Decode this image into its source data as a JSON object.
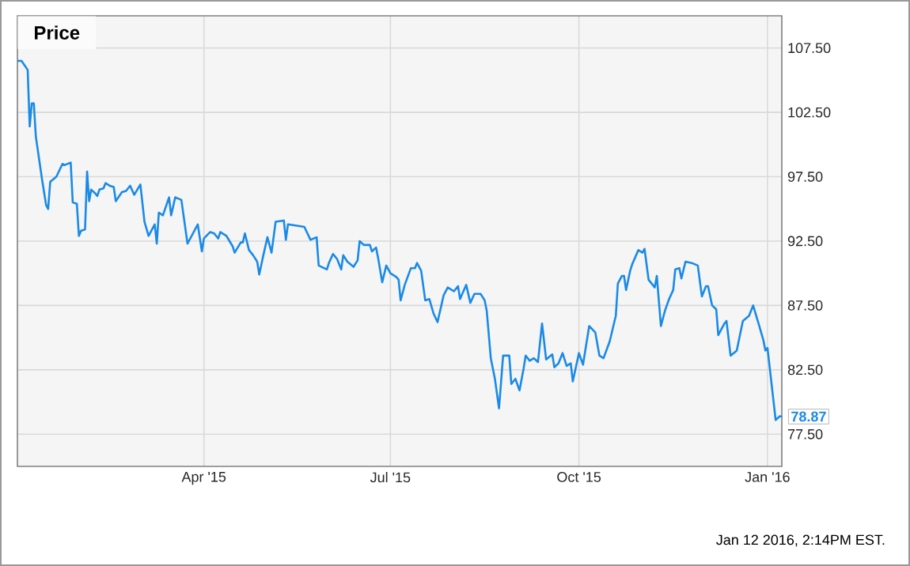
{
  "chart_data": {
    "type": "line",
    "title": "Price",
    "color": "#1a8ae6",
    "grid": true,
    "xlim": [
      "2014-12-31",
      "2016-01-08"
    ],
    "xticks": [
      {
        "value": "2015-04-01",
        "label": "Apr '15"
      },
      {
        "value": "2015-07-01",
        "label": "Jul '15"
      },
      {
        "value": "2015-10-01",
        "label": "Oct '15"
      },
      {
        "value": "2016-01-01",
        "label": "Jan '16"
      }
    ],
    "ylim": [
      75,
      110
    ],
    "yticks": [
      {
        "value": 77.5,
        "label": "77.50"
      },
      {
        "value": 82.5,
        "label": "82.50"
      },
      {
        "value": 87.5,
        "label": "87.50"
      },
      {
        "value": 92.5,
        "label": "92.50"
      },
      {
        "value": 97.5,
        "label": "97.50"
      },
      {
        "value": 102.5,
        "label": "102.50"
      },
      {
        "value": 107.5,
        "label": "107.50"
      }
    ],
    "x": [
      "2014-12-31",
      "2015-01-02",
      "2015-01-05",
      "2015-01-06",
      "2015-01-07",
      "2015-01-08",
      "2015-01-09",
      "2015-01-12",
      "2015-01-14",
      "2015-01-15",
      "2015-01-16",
      "2015-01-19",
      "2015-01-22",
      "2015-01-23",
      "2015-01-26",
      "2015-01-27",
      "2015-01-29",
      "2015-01-30",
      "2015-01-31",
      "2015-02-02",
      "2015-02-03",
      "2015-02-04",
      "2015-02-05",
      "2015-02-07",
      "2015-02-08",
      "2015-02-09",
      "2015-02-11",
      "2015-02-12",
      "2015-02-14",
      "2015-02-16",
      "2015-02-17",
      "2015-02-20",
      "2015-02-22",
      "2015-02-24",
      "2015-02-26",
      "2015-03-01",
      "2015-03-03",
      "2015-03-05",
      "2015-03-08",
      "2015-03-09",
      "2015-03-10",
      "2015-03-12",
      "2015-03-15",
      "2015-03-16",
      "2015-03-18",
      "2015-03-21",
      "2015-03-24",
      "2015-03-29",
      "2015-03-31",
      "2015-04-01",
      "2015-04-04",
      "2015-04-06",
      "2015-04-08",
      "2015-04-09",
      "2015-04-12",
      "2015-04-15",
      "2015-04-16",
      "2015-04-19",
      "2015-04-20",
      "2015-04-21",
      "2015-04-23",
      "2015-04-25",
      "2015-04-27",
      "2015-04-28",
      "2015-04-30",
      "2015-05-02",
      "2015-05-04",
      "2015-05-06",
      "2015-05-10",
      "2015-05-11",
      "2015-05-12",
      "2015-05-20",
      "2015-05-23",
      "2015-05-26",
      "2015-05-27",
      "2015-05-31",
      "2015-06-01",
      "2015-06-03",
      "2015-06-05",
      "2015-06-07",
      "2015-06-08",
      "2015-06-10",
      "2015-06-13",
      "2015-06-15",
      "2015-06-16",
      "2015-06-18",
      "2015-06-21",
      "2015-06-22",
      "2015-06-24",
      "2015-06-25",
      "2015-06-27",
      "2015-06-29",
      "2015-07-01",
      "2015-07-04",
      "2015-07-05",
      "2015-07-06",
      "2015-07-08",
      "2015-07-11",
      "2015-07-13",
      "2015-07-14",
      "2015-07-16",
      "2015-07-18",
      "2015-07-20",
      "2015-07-22",
      "2015-07-24",
      "2015-07-27",
      "2015-07-29",
      "2015-08-01",
      "2015-08-03",
      "2015-08-04",
      "2015-08-07",
      "2015-08-09",
      "2015-08-11",
      "2015-08-14",
      "2015-08-16",
      "2015-08-17",
      "2015-08-19",
      "2015-08-21",
      "2015-08-23",
      "2015-08-25",
      "2015-08-28",
      "2015-08-29",
      "2015-08-31",
      "2015-09-02",
      "2015-09-04",
      "2015-09-05",
      "2015-09-07",
      "2015-09-09",
      "2015-09-11",
      "2015-09-13",
      "2015-09-15",
      "2015-09-18",
      "2015-09-19",
      "2015-09-21",
      "2015-09-23",
      "2015-09-25",
      "2015-09-27",
      "2015-09-28",
      "2015-10-01",
      "2015-10-03",
      "2015-10-06",
      "2015-10-09",
      "2015-10-11",
      "2015-10-13",
      "2015-10-16",
      "2015-10-19",
      "2015-10-20",
      "2015-10-22",
      "2015-10-23",
      "2015-10-24",
      "2015-10-26",
      "2015-10-27",
      "2015-10-30",
      "2015-11-01",
      "2015-11-02",
      "2015-11-04",
      "2015-11-06",
      "2015-11-07",
      "2015-11-08",
      "2015-11-10",
      "2015-11-12",
      "2015-11-14",
      "2015-11-16",
      "2015-11-17",
      "2015-11-19",
      "2015-11-20",
      "2015-11-22",
      "2015-11-25",
      "2015-11-28",
      "2015-11-30",
      "2015-12-02",
      "2015-12-03",
      "2015-12-05",
      "2015-12-07",
      "2015-12-08",
      "2015-12-11",
      "2015-12-12",
      "2015-12-14",
      "2015-12-17",
      "2015-12-20",
      "2015-12-23",
      "2015-12-25",
      "2015-12-28",
      "2015-12-30",
      "2015-12-31",
      "2016-01-01",
      "2016-01-05",
      "2016-01-07",
      "2016-01-08"
    ],
    "values": [
      106.5,
      106.5,
      105.8,
      101.4,
      103.2,
      103.2,
      100.6,
      97.3,
      95.3,
      95.0,
      97.1,
      97.5,
      98.5,
      98.4,
      98.6,
      95.5,
      95.4,
      92.9,
      93.3,
      93.4,
      97.9,
      95.6,
      96.5,
      96.2,
      96.0,
      96.5,
      96.6,
      97.0,
      96.8,
      96.7,
      95.6,
      96.3,
      96.4,
      96.8,
      96.1,
      96.9,
      94.0,
      92.9,
      93.8,
      92.3,
      94.7,
      94.5,
      95.9,
      94.5,
      95.9,
      95.7,
      92.3,
      93.8,
      91.7,
      92.7,
      93.2,
      93.1,
      92.7,
      93.2,
      92.9,
      92.1,
      91.6,
      92.4,
      92.4,
      93.1,
      91.8,
      91.4,
      90.9,
      89.9,
      91.4,
      92.8,
      91.6,
      94.0,
      94.1,
      92.6,
      93.8,
      93.6,
      92.6,
      92.8,
      90.6,
      90.3,
      90.8,
      91.5,
      91.1,
      90.3,
      91.4,
      90.9,
      90.5,
      91.0,
      92.5,
      92.2,
      92.2,
      91.7,
      92.0,
      91.2,
      89.3,
      90.6,
      90.0,
      89.7,
      89.5,
      87.9,
      89.1,
      90.4,
      90.4,
      90.8,
      90.2,
      87.9,
      88.0,
      86.9,
      86.2,
      88.3,
      88.9,
      88.6,
      89.0,
      88.0,
      89.1,
      87.7,
      88.4,
      88.4,
      87.9,
      87.1,
      83.4,
      81.8,
      79.5,
      83.6,
      83.6,
      81.4,
      81.8,
      80.9,
      82.6,
      83.6,
      83.2,
      83.4,
      83.1,
      86.1,
      83.3,
      83.7,
      82.7,
      83.0,
      83.8,
      82.8,
      83.0,
      81.6,
      83.8,
      82.9,
      85.9,
      85.4,
      83.6,
      83.4,
      84.7,
      86.7,
      89.2,
      89.8,
      89.8,
      88.7,
      90.2,
      90.7,
      91.8,
      91.6,
      91.9,
      89.5,
      89.1,
      88.9,
      89.8,
      85.9,
      87.1,
      88.0,
      88.7,
      90.3,
      90.4,
      89.6,
      90.9,
      90.8,
      90.6,
      88.2,
      89.0,
      89.0,
      87.5,
      87.2,
      85.2,
      86.1,
      86.3,
      83.6,
      84.0,
      86.3,
      86.7,
      87.5,
      85.9,
      84.8,
      84.0,
      84.2,
      78.6,
      78.9,
      78.87
    ],
    "annotations": [
      {
        "text": "78.87",
        "x": "2016-01-08",
        "y": 78.87
      },
      "Jan 12 2016, 2:14PM EST."
    ]
  }
}
